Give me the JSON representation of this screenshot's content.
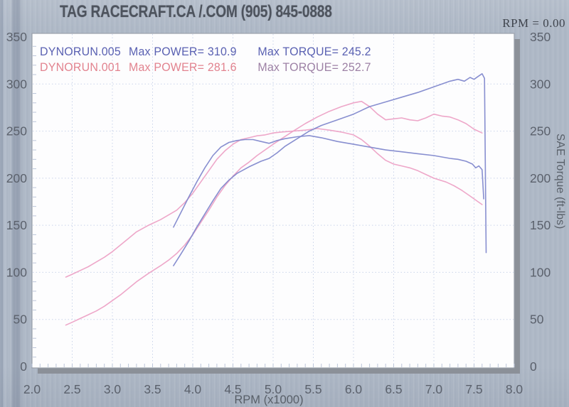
{
  "header": {
    "title": "TAG RACECRAFT.CA /.COM (905) 845-0888",
    "rpm_readout": "RPM = 0.00"
  },
  "legend": {
    "rows": [
      {
        "run": "DYNORUN.005",
        "power_label": "Max POWER=",
        "power_value": "310.9",
        "torque_label": "Max TORQUE=",
        "torque_value": "245.2",
        "run_color": "#5a61b2",
        "torque_color": "#5a61b2"
      },
      {
        "run": "DYNORUN.001",
        "power_label": "Max POWER=",
        "power_value": "281.6",
        "torque_label": "Max TORQUE=",
        "torque_value": "252.7",
        "run_color": "#e2838f",
        "torque_color": "#9d81a5"
      }
    ]
  },
  "axes": {
    "xlabel": "RPM (x1000)",
    "right_axis_label": "SAE Torque (ft-lbs)",
    "x_tick_labels": [
      "2.0",
      "2.5",
      "3.0",
      "3.5",
      "4.0",
      "4.5",
      "5.0",
      "5.5",
      "6.0",
      "6.5",
      "7.0",
      "7.5",
      "8.0"
    ],
    "x_tick_values": [
      2.0,
      2.5,
      3.0,
      3.5,
      4.0,
      4.5,
      5.0,
      5.5,
      6.0,
      6.5,
      7.0,
      7.5,
      8.0
    ],
    "y_tick_values": [
      0,
      50,
      100,
      150,
      200,
      250,
      300,
      350
    ],
    "tick_label_color": "#5b616c",
    "grid_color": "#c9d4ea",
    "minor_tick_color": "#bcc6da"
  },
  "chart_data": {
    "type": "line",
    "title": "TAG RACECRAFT.CA /.COM (905) 845-0888",
    "xlabel": "RPM (x1000)",
    "ylabel_right": "SAE Torque (ft-lbs)",
    "x_range": [
      2.0,
      8.0
    ],
    "y_range": [
      0,
      350
    ],
    "grid": true,
    "legend_position": "top-left",
    "series": [
      {
        "name": "DYNORUN.001 torque (ft-lbs)",
        "color": "#eda2c6",
        "max": 252.7,
        "points": [
          [
            2.42,
            95
          ],
          [
            2.5,
            98
          ],
          [
            2.6,
            102
          ],
          [
            2.7,
            106
          ],
          [
            2.8,
            111
          ],
          [
            2.9,
            116
          ],
          [
            3.0,
            122
          ],
          [
            3.1,
            129
          ],
          [
            3.2,
            136
          ],
          [
            3.3,
            143
          ],
          [
            3.45,
            150
          ],
          [
            3.6,
            156
          ],
          [
            3.7,
            161
          ],
          [
            3.8,
            166
          ],
          [
            3.9,
            174
          ],
          [
            4.0,
            184
          ],
          [
            4.1,
            196
          ],
          [
            4.2,
            208
          ],
          [
            4.3,
            220
          ],
          [
            4.4,
            229
          ],
          [
            4.5,
            236
          ],
          [
            4.6,
            241
          ],
          [
            4.7,
            243
          ],
          [
            4.8,
            245
          ],
          [
            4.9,
            246
          ],
          [
            5.0,
            248
          ],
          [
            5.1,
            249
          ],
          [
            5.25,
            250
          ],
          [
            5.4,
            251
          ],
          [
            5.55,
            252.7
          ],
          [
            5.7,
            251
          ],
          [
            5.85,
            249
          ],
          [
            6.0,
            246
          ],
          [
            6.1,
            241
          ],
          [
            6.2,
            234
          ],
          [
            6.3,
            226
          ],
          [
            6.4,
            219
          ],
          [
            6.5,
            215
          ],
          [
            6.6,
            213
          ],
          [
            6.7,
            211
          ],
          [
            6.8,
            208
          ],
          [
            6.9,
            204
          ],
          [
            7.0,
            200
          ],
          [
            7.15,
            196
          ],
          [
            7.25,
            192
          ],
          [
            7.35,
            187
          ],
          [
            7.45,
            181
          ],
          [
            7.55,
            175
          ],
          [
            7.6,
            172
          ]
        ]
      },
      {
        "name": "DYNORUN.001 power (hp)",
        "color": "#eda2c6",
        "max": 281.6,
        "points": [
          [
            2.42,
            44
          ],
          [
            2.5,
            47
          ],
          [
            2.6,
            51
          ],
          [
            2.7,
            55
          ],
          [
            2.8,
            59
          ],
          [
            2.9,
            64
          ],
          [
            3.0,
            70
          ],
          [
            3.1,
            76
          ],
          [
            3.2,
            83
          ],
          [
            3.3,
            90
          ],
          [
            3.45,
            99
          ],
          [
            3.6,
            107
          ],
          [
            3.7,
            113
          ],
          [
            3.8,
            120
          ],
          [
            3.9,
            129
          ],
          [
            4.0,
            140
          ],
          [
            4.1,
            153
          ],
          [
            4.2,
            166
          ],
          [
            4.3,
            180
          ],
          [
            4.4,
            192
          ],
          [
            4.5,
            202
          ],
          [
            4.6,
            211
          ],
          [
            4.7,
            217
          ],
          [
            4.8,
            224
          ],
          [
            5.0,
            236
          ],
          [
            5.25,
            250
          ],
          [
            5.4,
            258
          ],
          [
            5.55,
            265
          ],
          [
            5.7,
            271
          ],
          [
            5.85,
            276
          ],
          [
            6.0,
            280
          ],
          [
            6.1,
            281.6
          ],
          [
            6.2,
            276
          ],
          [
            6.3,
            268
          ],
          [
            6.4,
            262
          ],
          [
            6.5,
            263
          ],
          [
            6.6,
            264
          ],
          [
            6.7,
            262
          ],
          [
            6.8,
            261
          ],
          [
            6.9,
            264
          ],
          [
            7.0,
            268
          ],
          [
            7.1,
            266
          ],
          [
            7.2,
            265
          ],
          [
            7.3,
            262
          ],
          [
            7.4,
            258
          ],
          [
            7.5,
            252
          ],
          [
            7.6,
            248
          ]
        ]
      },
      {
        "name": "DYNORUN.005 torque (ft-lbs)",
        "color": "#8289cd",
        "max": 245.2,
        "points": [
          [
            3.76,
            148
          ],
          [
            3.85,
            163
          ],
          [
            3.95,
            180
          ],
          [
            4.05,
            196
          ],
          [
            4.15,
            211
          ],
          [
            4.25,
            224
          ],
          [
            4.35,
            233
          ],
          [
            4.45,
            238
          ],
          [
            4.55,
            240
          ],
          [
            4.65,
            241
          ],
          [
            4.75,
            241
          ],
          [
            4.85,
            239
          ],
          [
            4.95,
            237
          ],
          [
            5.05,
            240
          ],
          [
            5.15,
            242
          ],
          [
            5.3,
            244
          ],
          [
            5.45,
            245.2
          ],
          [
            5.6,
            243
          ],
          [
            5.8,
            239
          ],
          [
            6.0,
            236
          ],
          [
            6.2,
            233
          ],
          [
            6.4,
            230
          ],
          [
            6.6,
            228
          ],
          [
            6.8,
            226
          ],
          [
            7.0,
            224
          ],
          [
            7.2,
            221
          ],
          [
            7.3,
            220
          ],
          [
            7.4,
            218
          ],
          [
            7.48,
            215
          ],
          [
            7.52,
            211
          ],
          [
            7.56,
            213
          ],
          [
            7.6,
            209
          ],
          [
            7.62,
            178
          ]
        ]
      },
      {
        "name": "DYNORUN.005 power (hp)",
        "color": "#8289cd",
        "max": 310.9,
        "points": [
          [
            3.76,
            107
          ],
          [
            3.85,
            119
          ],
          [
            3.95,
            133
          ],
          [
            4.05,
            148
          ],
          [
            4.15,
            162
          ],
          [
            4.25,
            176
          ],
          [
            4.35,
            189
          ],
          [
            4.45,
            198
          ],
          [
            4.55,
            205
          ],
          [
            4.7,
            212
          ],
          [
            4.85,
            218
          ],
          [
            4.95,
            221
          ],
          [
            5.05,
            227
          ],
          [
            5.15,
            234
          ],
          [
            5.3,
            242
          ],
          [
            5.45,
            250
          ],
          [
            5.6,
            256
          ],
          [
            5.8,
            262
          ],
          [
            6.0,
            268
          ],
          [
            6.2,
            276
          ],
          [
            6.4,
            281
          ],
          [
            6.6,
            286
          ],
          [
            6.8,
            291
          ],
          [
            7.0,
            297
          ],
          [
            7.1,
            300
          ],
          [
            7.2,
            303
          ],
          [
            7.3,
            305
          ],
          [
            7.38,
            303
          ],
          [
            7.45,
            307
          ],
          [
            7.5,
            305
          ],
          [
            7.55,
            308
          ],
          [
            7.6,
            310.9
          ],
          [
            7.63,
            306
          ],
          [
            7.65,
            121
          ]
        ]
      }
    ]
  }
}
